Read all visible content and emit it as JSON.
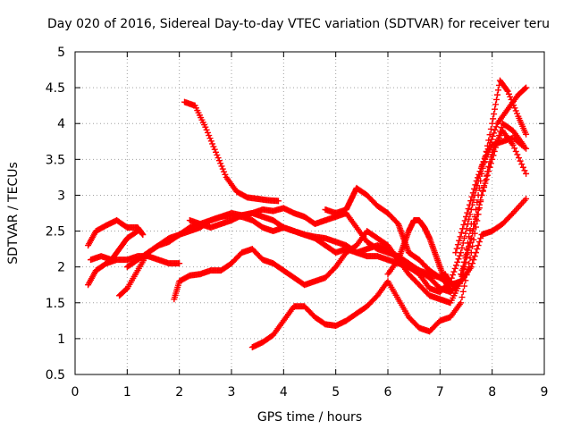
{
  "chart_data": {
    "type": "scatter",
    "title": "Day 020 of 2016, Sidereal Day-to-day VTEC variation (SDTVAR) for receiver teru",
    "xlabel": "GPS time / hours",
    "ylabel": "SDTVAR / TECUs",
    "xlim": [
      0,
      9
    ],
    "ylim": [
      0.5,
      5
    ],
    "x_ticks": [
      "0",
      "1",
      "2",
      "3",
      "4",
      "5",
      "6",
      "7",
      "8",
      "9"
    ],
    "y_ticks": [
      "0.5",
      "1",
      "1.5",
      "2",
      "2.5",
      "3",
      "3.5",
      "4",
      "4.5",
      "5"
    ],
    "grid": true,
    "marker": "+",
    "color": "#ff0000",
    "series": [
      {
        "name": "s1",
        "x": [
          2.1,
          2.3,
          2.5,
          2.7,
          2.9,
          3.1,
          3.3,
          3.5,
          3.7,
          3.9
        ],
        "y": [
          4.3,
          4.25,
          3.95,
          3.6,
          3.25,
          3.05,
          2.97,
          2.95,
          2.93,
          2.92
        ]
      },
      {
        "name": "s2",
        "x": [
          0.25,
          0.4,
          0.6,
          0.8,
          1.0,
          1.2,
          1.3
        ],
        "y": [
          2.3,
          2.5,
          2.58,
          2.65,
          2.55,
          2.55,
          2.45
        ]
      },
      {
        "name": "s3",
        "x": [
          0.25,
          0.4,
          0.6,
          0.8,
          1.0,
          1.2,
          1.4,
          1.6,
          1.8,
          2.0
        ],
        "y": [
          1.75,
          1.95,
          2.05,
          2.1,
          2.1,
          2.15,
          2.15,
          2.1,
          2.05,
          2.05
        ]
      },
      {
        "name": "s4",
        "x": [
          0.3,
          0.5,
          0.7,
          0.85,
          1.0,
          1.2
        ],
        "y": [
          2.1,
          2.15,
          2.1,
          2.25,
          2.4,
          2.5
        ]
      },
      {
        "name": "s5",
        "x": [
          0.85,
          1.0,
          1.2,
          1.4,
          1.6,
          1.8,
          2.0,
          2.2,
          2.4,
          2.6,
          2.8,
          3.0,
          3.2,
          3.4,
          3.6,
          3.8,
          4.0,
          4.2,
          4.4,
          4.6,
          4.8,
          5.0,
          5.2,
          5.4,
          5.6,
          5.8,
          6.0,
          6.2,
          6.4,
          6.6,
          6.8,
          7.0,
          7.2,
          7.4,
          7.6,
          7.8,
          8.0,
          8.15,
          8.3,
          8.5,
          8.65
        ],
        "y": [
          1.6,
          1.7,
          1.95,
          2.2,
          2.3,
          2.35,
          2.45,
          2.55,
          2.6,
          2.65,
          2.7,
          2.75,
          2.72,
          2.75,
          2.8,
          2.78,
          2.82,
          2.75,
          2.7,
          2.6,
          2.65,
          2.7,
          2.75,
          2.55,
          2.35,
          2.25,
          2.2,
          2.15,
          2.05,
          1.95,
          1.85,
          1.7,
          1.65,
          1.8,
          2.4,
          3.3,
          4.0,
          4.6,
          4.45,
          4.1,
          3.85
        ]
      },
      {
        "name": "s6",
        "x": [
          1.0,
          1.2,
          1.4,
          1.6,
          1.8,
          2.0,
          2.2,
          2.4,
          2.6,
          2.8,
          3.0,
          3.2,
          3.4,
          3.6,
          3.8,
          4.0,
          4.2,
          4.4,
          4.6,
          4.8,
          5.0,
          5.2,
          5.4,
          5.6,
          5.8,
          6.0,
          6.2,
          6.4,
          6.6,
          6.8,
          7.0,
          7.2,
          7.4,
          7.6,
          7.8,
          8.0,
          8.2,
          8.4,
          8.65
        ],
        "y": [
          2.0,
          2.1,
          2.2,
          2.3,
          2.4,
          2.45,
          2.5,
          2.55,
          2.65,
          2.7,
          2.72,
          2.7,
          2.65,
          2.55,
          2.5,
          2.55,
          2.5,
          2.45,
          2.4,
          2.3,
          2.2,
          2.25,
          2.2,
          2.15,
          2.15,
          2.1,
          2.05,
          2.0,
          1.95,
          1.9,
          1.85,
          1.75,
          1.8,
          2.0,
          2.45,
          2.5,
          2.6,
          2.75,
          2.95
        ]
      },
      {
        "name": "s7",
        "x": [
          1.9,
          2.0,
          2.2,
          2.4,
          2.6,
          2.8,
          3.0,
          3.2,
          3.4,
          3.6,
          3.8,
          4.0,
          4.2,
          4.4,
          4.6,
          4.8,
          5.0,
          5.2,
          5.4,
          5.6,
          5.8,
          6.0,
          6.2,
          6.4,
          6.6,
          6.8,
          7.0,
          7.2,
          7.4,
          7.6
        ],
        "y": [
          1.55,
          1.8,
          1.88,
          1.9,
          1.95,
          1.95,
          2.05,
          2.2,
          2.25,
          2.1,
          2.05,
          1.95,
          1.85,
          1.75,
          1.8,
          1.85,
          2.0,
          2.2,
          2.3,
          2.5,
          2.4,
          2.3,
          2.1,
          1.9,
          1.75,
          1.6,
          1.55,
          1.5,
          1.8,
          2.6
        ]
      },
      {
        "name": "s8",
        "x": [
          3.4,
          3.6,
          3.8,
          4.0,
          4.2,
          4.4,
          4.6,
          4.8,
          5.0,
          5.2,
          5.4,
          5.6,
          5.8,
          6.0,
          6.2,
          6.4,
          6.6,
          6.8,
          7.0,
          7.2,
          7.4,
          7.6,
          7.8,
          8.0,
          8.2,
          8.4,
          8.65
        ],
        "y": [
          0.88,
          0.95,
          1.05,
          1.25,
          1.45,
          1.45,
          1.3,
          1.2,
          1.18,
          1.25,
          1.35,
          1.45,
          1.6,
          1.8,
          1.55,
          1.3,
          1.15,
          1.1,
          1.25,
          1.3,
          1.5,
          2.2,
          3.0,
          3.6,
          3.9,
          3.7,
          3.3
        ]
      },
      {
        "name": "s9",
        "x": [
          2.2,
          2.4,
          2.6,
          2.8,
          3.0,
          3.2,
          3.4,
          3.6,
          3.8,
          4.0,
          4.2,
          4.4,
          4.6,
          4.8,
          5.0,
          5.2,
          5.4,
          5.6,
          5.8,
          6.0,
          6.2,
          6.4,
          6.6,
          6.8,
          7.0,
          7.2,
          7.4,
          7.6,
          7.8,
          8.0,
          8.2,
          8.4,
          8.65
        ],
        "y": [
          2.65,
          2.6,
          2.55,
          2.6,
          2.65,
          2.72,
          2.75,
          2.7,
          2.65,
          2.55,
          2.5,
          2.45,
          2.42,
          2.4,
          2.35,
          2.3,
          2.2,
          2.25,
          2.3,
          2.25,
          2.1,
          2.0,
          1.9,
          1.7,
          1.65,
          1.8,
          2.2,
          2.8,
          3.4,
          3.7,
          3.75,
          3.8,
          3.65
        ]
      },
      {
        "name": "s10",
        "x": [
          4.8,
          5.0,
          5.2,
          5.3,
          5.4,
          5.6,
          5.8,
          6.0,
          6.2,
          6.3,
          6.4,
          6.6,
          6.8,
          7.0,
          7.1,
          7.2
        ],
        "y": [
          2.8,
          2.75,
          2.8,
          2.95,
          3.1,
          3.0,
          2.85,
          2.75,
          2.6,
          2.4,
          2.2,
          2.1,
          1.95,
          1.85,
          1.9,
          1.75
        ]
      },
      {
        "name": "s11",
        "x": [
          6.0,
          6.2,
          6.3,
          6.4,
          6.5,
          6.6,
          6.7,
          6.8,
          6.9,
          7.0,
          7.1,
          7.2
        ],
        "y": [
          1.9,
          2.1,
          2.3,
          2.5,
          2.65,
          2.65,
          2.55,
          2.4,
          2.2,
          2.0,
          1.8,
          1.65
        ]
      },
      {
        "name": "s12",
        "x": [
          7.3,
          7.5,
          7.7,
          7.9,
          8.1,
          8.3,
          8.5,
          8.65
        ],
        "y": [
          2.2,
          2.7,
          3.2,
          3.6,
          4.0,
          4.2,
          4.4,
          4.5
        ]
      },
      {
        "name": "s13",
        "x": [
          7.4,
          7.6,
          7.8,
          8.0,
          8.2,
          8.4,
          8.6
        ],
        "y": [
          1.9,
          2.4,
          3.0,
          3.5,
          4.0,
          3.9,
          3.7
        ]
      }
    ]
  }
}
